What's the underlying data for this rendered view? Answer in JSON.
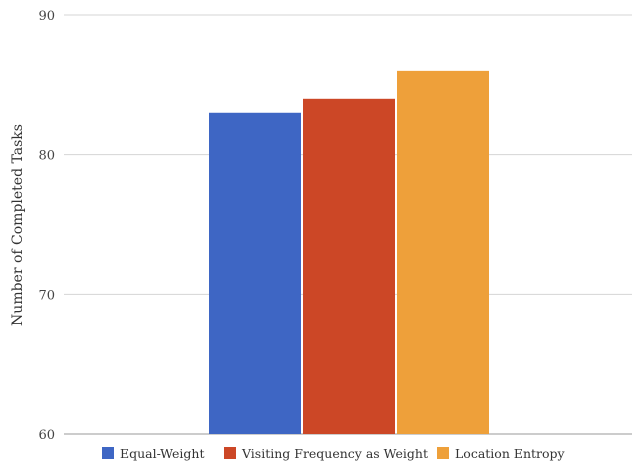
{
  "chart_data": {
    "type": "bar",
    "title": "",
    "xlabel": "",
    "ylabel": "Number of Completed Tasks",
    "ylim": [
      60,
      90
    ],
    "yticks": [
      60,
      70,
      80,
      90
    ],
    "grid": true,
    "legend_position": "bottom",
    "series": [
      {
        "name": "Equal-Weight",
        "values": [
          83
        ],
        "color": "#3e66c4"
      },
      {
        "name": "Visiting Frequency as Weight",
        "values": [
          84
        ],
        "color": "#cc4726"
      },
      {
        "name": "Location Entropy",
        "values": [
          86
        ],
        "color": "#eea03a"
      }
    ]
  }
}
